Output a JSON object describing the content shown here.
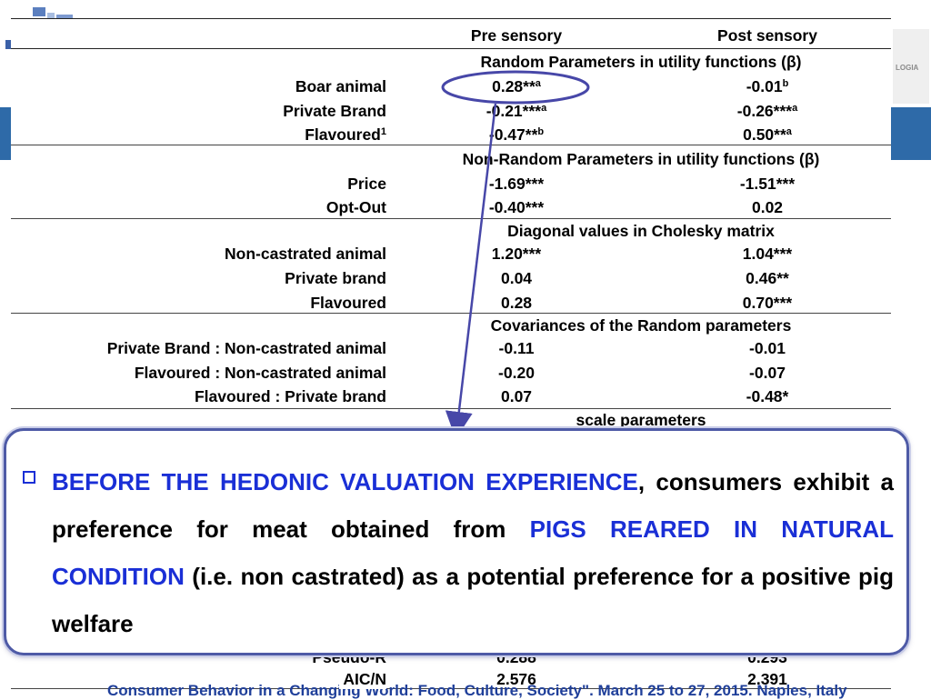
{
  "header": {
    "pre_label": "Pre sensory",
    "post_label": "Post sensory",
    "right_logo_text": "LOGIA"
  },
  "sections": {
    "random": {
      "title": "Random Parameters in utility functions (β)"
    },
    "nonrandom": {
      "title": "Non-Random Parameters in utility functions (β)"
    },
    "cholesky": {
      "title": "Diagonal values in Cholesky matrix"
    },
    "cov": {
      "title": "Covariances of the Random parameters"
    },
    "scale": {
      "title": "scale parameters"
    }
  },
  "rows": {
    "boar": {
      "label": "Boar animal",
      "pre": "0.28**",
      "pre_sup": "a",
      "post": "-0.01",
      "post_sup": "b"
    },
    "privbrand": {
      "label": "Private Brand",
      "pre": "-0.21***",
      "pre_sup": "a",
      "post": "-0.26***",
      "post_sup": "a"
    },
    "flavoured": {
      "label": "Flavoured",
      "label_sup": "1",
      "pre": "-0.47**",
      "pre_sup": "b",
      "post": "0.50**",
      "post_sup": "a"
    },
    "price": {
      "label": "Price",
      "pre": "-1.69***",
      "post": "-1.51***"
    },
    "optout": {
      "label": "Opt-Out",
      "pre": "-0.40***",
      "post": "0.02"
    },
    "noncast": {
      "label": "Non-castrated animal",
      "pre": "1.20***",
      "post": "1.04***"
    },
    "privbrand2": {
      "label": "Private brand",
      "pre": "0.04",
      "post": "0.46**"
    },
    "flavoured2": {
      "label": "Flavoured",
      "pre": "0.28",
      "post": "0.70***"
    },
    "cov1": {
      "label": "Private Brand : Non-castrated animal",
      "pre": "-0.11",
      "post": "-0.01"
    },
    "cov2": {
      "label": "Flavoured : Non-castrated animal",
      "pre": "-0.20",
      "post": "-0.07"
    },
    "cov3": {
      "label": "Flavoured : Private brand",
      "pre": "0.07",
      "post": "-0.48*"
    },
    "pseudo": {
      "label": "Pseudo-R",
      "pre": "0.288",
      "post": "0.293"
    },
    "aic": {
      "label": "AIC/N",
      "pre": "2.576",
      "post": "2.391"
    }
  },
  "callout": {
    "part1_highlight": "BEFORE THE HEDONIC VALUATION EXPERIENCE",
    "part2": ", consumers exhibit a preference for meat obtained from ",
    "part3_highlight": "PIGS REARED IN NATURAL CONDITION",
    "part4": " (i.e. non castrated) as a potential preference for a positive pig welfare"
  },
  "footer": {
    "conference": "Consumer Behavior in a Changing World: Food, Culture, Society\". March 25 to 27, 2015. Naples, Italy"
  },
  "colors": {
    "accent_blue": "#1a2fd6",
    "callout_border": "#4e5aa6",
    "annotation": "#4747a8"
  }
}
